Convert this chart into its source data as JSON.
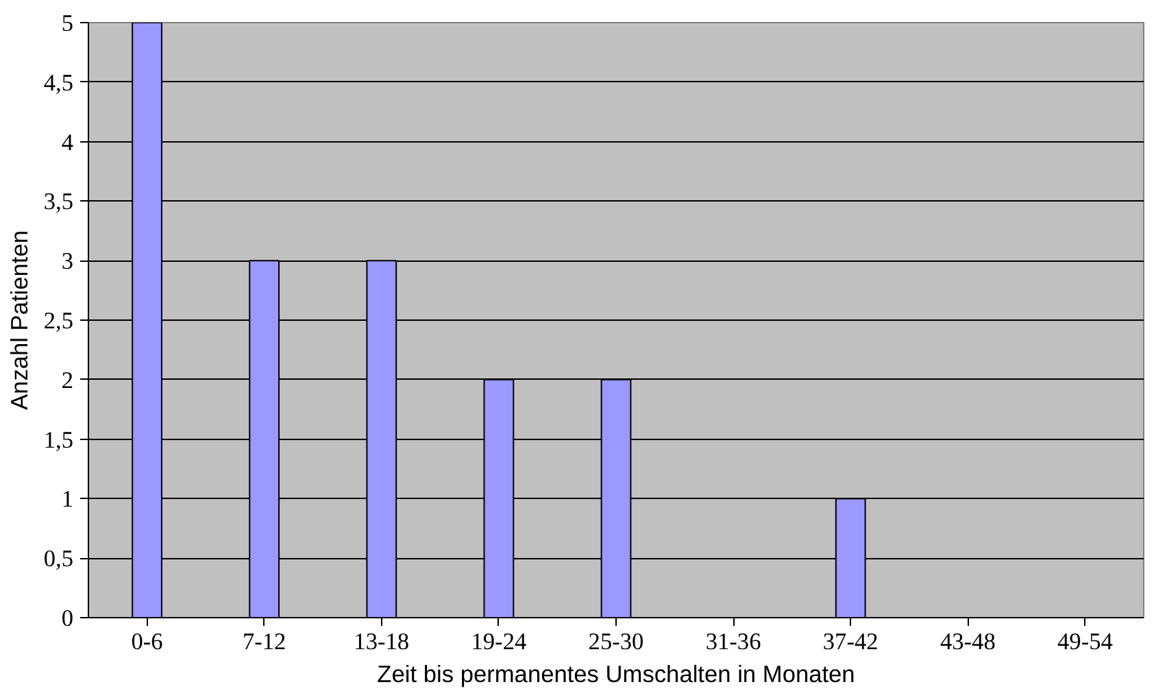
{
  "chart_data": {
    "type": "bar",
    "xlabel": "Zeit bis permanentes Umschalten in Monaten",
    "ylabel": "Anzahl Patienten",
    "categories": [
      "0-6",
      "7-12",
      "13-18",
      "19-24",
      "25-30",
      "31-36",
      "37-42",
      "43-48",
      "49-54"
    ],
    "values": [
      5,
      3,
      3,
      2,
      2,
      0,
      1,
      0,
      0
    ],
    "color": "#9999ff",
    "ylim": [
      0,
      5
    ],
    "yticks": [
      0,
      {
        "value": 0.5,
        "label": "0,5"
      },
      1,
      {
        "value": 1.5,
        "label": "1,5"
      },
      2,
      {
        "value": 2.5,
        "label": "2,5"
      },
      3,
      {
        "value": 3.5,
        "label": "3,5"
      },
      4,
      {
        "value": 4.5,
        "label": "4,5"
      },
      5
    ],
    "grid": "y"
  }
}
